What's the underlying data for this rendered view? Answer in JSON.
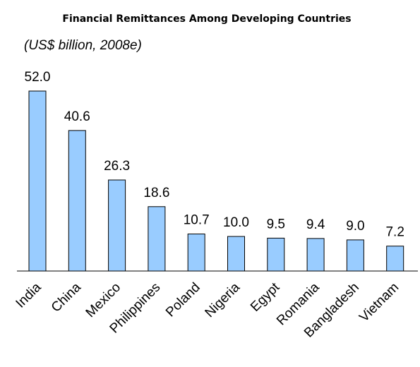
{
  "chart_data": {
    "type": "bar",
    "title": "Financial Remittances Among Developing Countries",
    "subtitle": "(US$ billion, 2008e)",
    "categories": [
      "India",
      "China",
      "Mexico",
      "Philippines",
      "Poland",
      "Nigeria",
      "Egypt",
      "Romania",
      "Bangladesh",
      "Vietnam"
    ],
    "values": [
      52.0,
      40.6,
      26.3,
      18.6,
      10.7,
      10.0,
      9.5,
      9.4,
      9.0,
      7.2
    ],
    "value_labels": [
      "52.0",
      "40.6",
      "26.3",
      "18.6",
      "10.7",
      "10.0",
      "9.5",
      "9.4",
      "9.0",
      "7.2"
    ],
    "ylim": [
      0,
      52
    ],
    "grid": false,
    "legend": "none",
    "bar_color": "#99ccff"
  }
}
